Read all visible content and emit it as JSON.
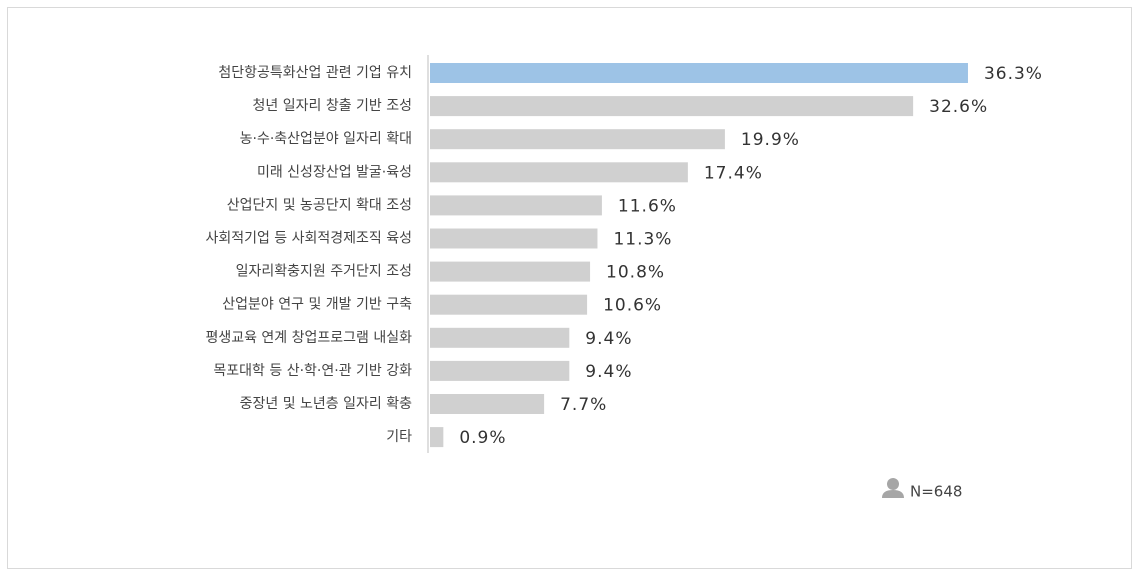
{
  "chart_data": {
    "type": "barh",
    "categories": [
      "첨단항공특화산업 관련 기업 유치",
      "청년 일자리 창출 기반 조성",
      "농·수·축산업분야 일자리 확대",
      "미래 신성장산업 발굴·육성",
      "산업단지 및 농공단지 확대 조성",
      "사회적기업 등 사회적경제조직 육성",
      "일자리확충지원 주거단지 조성",
      "산업분야 연구 및 개발 기반 구축",
      "평생교육 연계 창업프로그램 내실화",
      "목포대학 등 산·학·연·관 기반 강화",
      "중장년 및 노년층 일자리 확충",
      "기타"
    ],
    "values": [
      36.3,
      32.6,
      19.9,
      17.4,
      11.6,
      11.3,
      10.8,
      10.6,
      9.4,
      9.4,
      7.7,
      0.9
    ],
    "value_labels": [
      "36.3%",
      "32.6%",
      "19.9%",
      "17.4%",
      "11.6%",
      "11.3%",
      "10.8%",
      "10.6%",
      "9.4%",
      "9.4%",
      "7.7%",
      "0.9%"
    ],
    "colors": [
      "#9dc3e6",
      "#d0d0d0",
      "#d0d0d0",
      "#d0d0d0",
      "#d0d0d0",
      "#d0d0d0",
      "#d0d0d0",
      "#d0d0d0",
      "#d0d0d0",
      "#d0d0d0",
      "#d0d0d0",
      "#d0d0d0"
    ],
    "annotation": "N=648"
  }
}
